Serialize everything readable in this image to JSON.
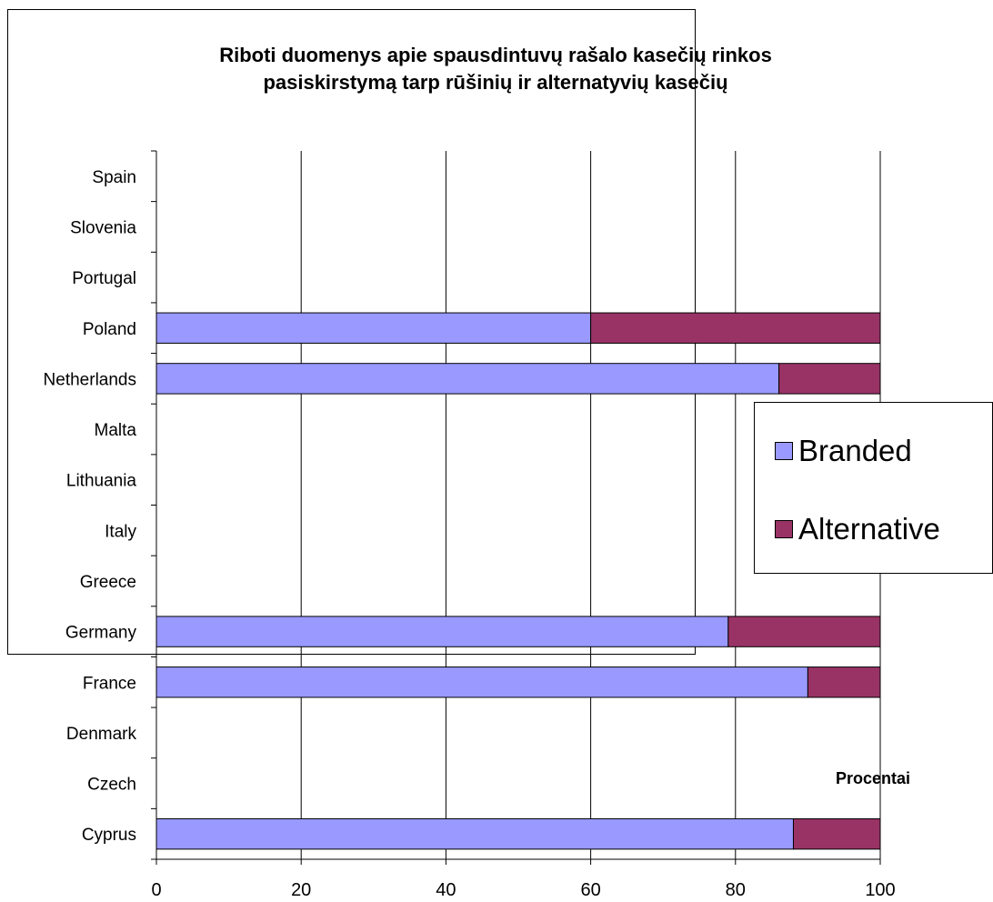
{
  "chart_data": {
    "type": "bar",
    "orientation": "horizontal",
    "stacked": true,
    "title": "Riboti duomenys apie spausdintuvų rašalo kasečių rinkos\npasiskirstymą tarp rūšinių ir alternatyvių kasečių",
    "xlabel": "Procentai",
    "ylabel": "",
    "xlim": [
      0,
      100
    ],
    "xticks": [
      0,
      20,
      40,
      60,
      80,
      100
    ],
    "grid": "vertical",
    "legend_position": "right",
    "categories": [
      "Spain",
      "Slovenia",
      "Portugal",
      "Poland",
      "Netherlands",
      "Malta",
      "Lithuania",
      "Italy",
      "Greece",
      "Germany",
      "France",
      "Denmark",
      "Czech",
      "Cyprus"
    ],
    "series": [
      {
        "name": "Branded",
        "color": "#9999ff",
        "values": [
          null,
          null,
          null,
          60,
          86,
          null,
          null,
          null,
          null,
          79,
          90,
          null,
          null,
          88
        ]
      },
      {
        "name": "Alternative",
        "color": "#993366",
        "values": [
          null,
          null,
          null,
          40,
          14,
          null,
          null,
          null,
          null,
          21,
          10,
          null,
          null,
          12
        ]
      }
    ]
  }
}
